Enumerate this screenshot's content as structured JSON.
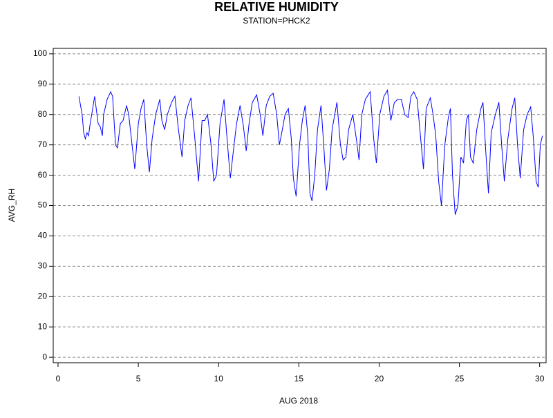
{
  "chart_data": {
    "type": "line",
    "title": "RELATIVE HUMIDITY",
    "subtitle": "STATION=PHCK2",
    "x_label": "AUG 2018",
    "y_label": "AVG_RH",
    "xlim": [
      -0.3,
      30.4
    ],
    "ylim": [
      -1.8,
      101.8
    ],
    "xticks": [
      0,
      5,
      10,
      15,
      20,
      25,
      30
    ],
    "yticks": [
      0,
      10,
      20,
      30,
      40,
      50,
      60,
      70,
      80,
      90,
      100
    ],
    "grid": true,
    "series": [
      {
        "name": "AVG_RH",
        "color": "#0000ff",
        "x": [
          1.3,
          1.5,
          1.6,
          1.7,
          1.8,
          1.9,
          2.0,
          2.1,
          2.28,
          2.5,
          2.63,
          2.76,
          2.84,
          3.06,
          3.28,
          3.4,
          3.58,
          3.7,
          3.88,
          4.05,
          4.27,
          4.4,
          4.65,
          4.78,
          5.0,
          5.17,
          5.34,
          5.52,
          5.69,
          5.86,
          6.08,
          6.34,
          6.47,
          6.64,
          6.81,
          7.07,
          7.28,
          7.5,
          7.72,
          7.89,
          8.1,
          8.28,
          8.49,
          8.75,
          8.97,
          9.14,
          9.31,
          9.53,
          9.7,
          9.87,
          10.09,
          10.34,
          10.56,
          10.73,
          10.9,
          11.12,
          11.34,
          11.55,
          11.72,
          11.9,
          12.1,
          12.37,
          12.59,
          12.76,
          12.97,
          13.19,
          13.4,
          13.62,
          13.79,
          13.97,
          14.14,
          14.35,
          14.53,
          14.66,
          14.83,
          15.04,
          15.22,
          15.39,
          15.56,
          15.69,
          15.82,
          15.99,
          16.16,
          16.38,
          16.55,
          16.72,
          16.9,
          17.07,
          17.37,
          17.59,
          17.76,
          17.93,
          18.1,
          18.36,
          18.58,
          18.75,
          18.92,
          19.14,
          19.44,
          19.66,
          19.83,
          20.04,
          20.3,
          20.52,
          20.73,
          20.95,
          21.16,
          21.38,
          21.6,
          21.81,
          21.98,
          22.16,
          22.37,
          22.59,
          22.76,
          22.93,
          23.19,
          23.36,
          23.53,
          23.71,
          23.88,
          24.09,
          24.31,
          24.44,
          24.57,
          24.74,
          24.91,
          25.09,
          25.26,
          25.43,
          25.56,
          25.69,
          25.86,
          26.08,
          26.34,
          26.47,
          26.64,
          26.81,
          26.98,
          27.24,
          27.46,
          27.63,
          27.8,
          28.02,
          28.28,
          28.45,
          28.62,
          28.79,
          29.0,
          29.22,
          29.44,
          29.61,
          29.78,
          29.91,
          30.04,
          30.17
        ],
        "values": [
          86,
          80,
          74,
          72,
          74,
          73,
          77,
          80,
          86,
          77,
          76,
          73,
          80,
          85,
          87.5,
          86,
          70,
          69,
          77,
          78,
          83,
          80,
          68,
          62,
          77,
          82,
          85,
          70,
          61,
          72,
          80,
          85,
          78,
          75,
          80,
          84,
          86,
          75,
          66,
          78,
          83,
          85.5,
          74,
          58,
          78,
          78,
          80,
          70,
          58,
          60,
          77,
          85,
          70,
          59,
          67,
          77,
          83,
          76,
          68,
          77,
          84,
          86.5,
          80,
          73,
          83,
          86,
          87,
          80,
          70,
          75,
          80,
          82,
          72,
          59,
          53,
          70,
          78,
          83,
          73,
          54,
          51.5,
          60,
          75,
          83,
          70,
          55,
          62,
          75,
          84,
          70,
          65,
          66,
          75,
          80,
          72,
          65,
          80,
          85,
          87.5,
          72,
          64,
          80,
          86,
          88,
          78,
          84,
          85,
          85,
          80,
          79,
          86,
          87.5,
          85,
          72,
          62,
          82,
          85.5,
          80,
          73,
          58,
          50,
          70,
          79,
          82,
          60,
          47,
          50,
          66,
          64,
          78,
          80,
          66,
          64,
          75,
          82,
          84,
          68,
          54,
          74,
          80,
          84,
          70,
          58,
          72,
          82,
          85.5,
          70,
          59,
          75,
          80,
          82.5,
          72,
          58,
          56,
          70,
          73
        ]
      }
    ]
  }
}
